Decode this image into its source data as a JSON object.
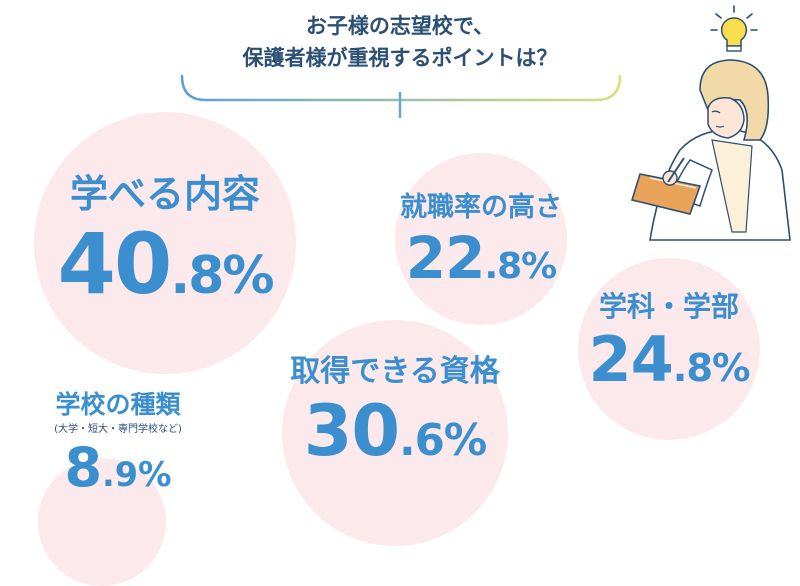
{
  "title": {
    "line1": "お子様の志望校で、",
    "line2": "保護者様が重視するポイントは？"
  },
  "colors": {
    "accent": "#3c8fcf",
    "bubble": "#fce9ec",
    "title": "#2c4f74",
    "bracket_start": "#5b9fd6",
    "bracket_end": "#d8e07a"
  },
  "icons": [
    "lightbulb-icon",
    "person-reading-illustration"
  ],
  "chart_data": {
    "type": "bubble",
    "unit": "%",
    "items": [
      {
        "name": "学べる内容",
        "value": 40.8,
        "int": "40",
        "dec": ".8%",
        "sub": ""
      },
      {
        "name": "就職率の高さ",
        "value": 22.8,
        "int": "22",
        "dec": ".8%",
        "sub": ""
      },
      {
        "name": "学科・学部",
        "value": 24.8,
        "int": "24",
        "dec": ".8%",
        "sub": ""
      },
      {
        "name": "取得できる資格",
        "value": 30.6,
        "int": "30",
        "dec": ".6%",
        "sub": ""
      },
      {
        "name": "学校の種類",
        "value": 8.9,
        "int": "8",
        "dec": ".9%",
        "sub": "(大学・短大・専門学校など)"
      }
    ]
  }
}
